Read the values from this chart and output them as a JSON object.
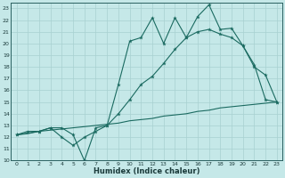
{
  "xlabel": "Humidex (Indice chaleur)",
  "bg_color": "#c5e8e8",
  "line_color": "#1a6a60",
  "grid_color": "#a8d0d0",
  "xlim": [
    -0.5,
    23.5
  ],
  "ylim": [
    10,
    23.5
  ],
  "xticks": [
    0,
    1,
    2,
    3,
    4,
    5,
    6,
    7,
    8,
    9,
    10,
    11,
    12,
    13,
    14,
    15,
    16,
    17,
    18,
    19,
    20,
    21,
    22,
    23
  ],
  "yticks": [
    10,
    11,
    12,
    13,
    14,
    15,
    16,
    17,
    18,
    19,
    20,
    21,
    22,
    23
  ],
  "s1_x": [
    0,
    1,
    2,
    3,
    4,
    5,
    6,
    7,
    8,
    9,
    10,
    11,
    12,
    13,
    14,
    15,
    16,
    17,
    18,
    19,
    20,
    21,
    22,
    23
  ],
  "s1_y": [
    12.2,
    12.5,
    12.5,
    12.8,
    12.8,
    12.2,
    10.0,
    12.8,
    13.0,
    16.5,
    20.2,
    20.5,
    22.2,
    20.0,
    22.2,
    20.5,
    22.3,
    23.3,
    21.2,
    21.3,
    19.8,
    18.0,
    17.3,
    15.0
  ],
  "s2_x": [
    0,
    2,
    3,
    4,
    5,
    6,
    7,
    8,
    9,
    10,
    11,
    12,
    13,
    14,
    15,
    16,
    17,
    18,
    19,
    20,
    21,
    22,
    23
  ],
  "s2_y": [
    12.2,
    12.5,
    12.8,
    12.0,
    11.3,
    12.0,
    12.5,
    13.0,
    14.0,
    15.2,
    16.5,
    17.2,
    18.3,
    19.5,
    20.5,
    21.0,
    21.2,
    20.8,
    20.5,
    19.8,
    18.2,
    15.2,
    15.0
  ],
  "s3_x": [
    0,
    1,
    2,
    3,
    4,
    5,
    6,
    7,
    8,
    9,
    10,
    11,
    12,
    13,
    14,
    15,
    16,
    17,
    18,
    19,
    20,
    21,
    22,
    23
  ],
  "s3_y": [
    12.2,
    12.3,
    12.5,
    12.6,
    12.7,
    12.8,
    12.9,
    13.0,
    13.1,
    13.2,
    13.4,
    13.5,
    13.6,
    13.8,
    13.9,
    14.0,
    14.2,
    14.3,
    14.5,
    14.6,
    14.7,
    14.8,
    14.9,
    15.0
  ]
}
